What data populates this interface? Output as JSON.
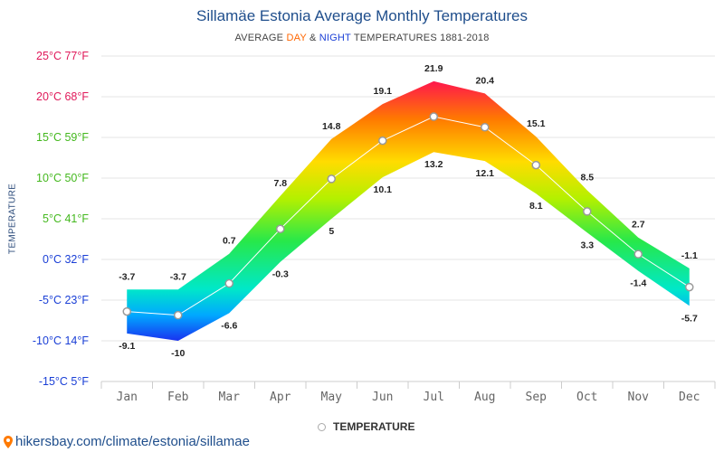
{
  "header": {
    "title": "Sillamäe Estonia Average Monthly Temperatures",
    "subtitle_prefix": "AVERAGE ",
    "subtitle_day": "DAY",
    "subtitle_amp": " & ",
    "subtitle_night": "NIGHT",
    "subtitle_suffix": " TEMPERATURES 1881-2018"
  },
  "legend": {
    "label": "TEMPERATURE"
  },
  "footer": {
    "url": "hikersbay.com/climate/estonia/sillamae"
  },
  "chart_data": {
    "type": "area",
    "categories": [
      "Jan",
      "Feb",
      "Mar",
      "Apr",
      "May",
      "Jun",
      "Jul",
      "Aug",
      "Sep",
      "Oct",
      "Nov",
      "Dec"
    ],
    "series": [
      {
        "name": "DAY",
        "values": [
          -3.7,
          -3.7,
          0.7,
          7.8,
          14.8,
          19.1,
          21.9,
          20.4,
          15.1,
          8.5,
          2.7,
          -1.1
        ]
      },
      {
        "name": "NIGHT",
        "values": [
          -9.1,
          -10,
          -6.6,
          -0.3,
          5,
          10.1,
          13.2,
          12.1,
          8.1,
          3.3,
          -1.4,
          -5.7
        ]
      },
      {
        "name": "TEMPERATURE",
        "values": [
          -6.4,
          -6.85,
          -2.95,
          3.75,
          9.9,
          14.6,
          17.55,
          16.25,
          11.6,
          5.9,
          0.65,
          -3.4
        ]
      }
    ],
    "ylabel": "TEMPERATURE",
    "yticks": [
      {
        "value": 25,
        "label": "25°C 77°F",
        "color": "#e0195a"
      },
      {
        "value": 20,
        "label": "20°C 68°F",
        "color": "#e0195a"
      },
      {
        "value": 15,
        "label": "15°C 59°F",
        "color": "#44b81e"
      },
      {
        "value": 10,
        "label": "10°C 50°F",
        "color": "#44b81e"
      },
      {
        "value": 5,
        "label": "5°C 41°F",
        "color": "#44b81e"
      },
      {
        "value": 0,
        "label": "0°C 32°F",
        "color": "#1a3fd6"
      },
      {
        "value": -5,
        "label": "-5°C 23°F",
        "color": "#1a3fd6"
      },
      {
        "value": -10,
        "label": "-10°C 14°F",
        "color": "#1a3fd6"
      },
      {
        "value": -15,
        "label": "-15°C 5°F",
        "color": "#1a3fd6"
      }
    ],
    "ylim": [
      -15,
      25
    ],
    "grid": true
  }
}
